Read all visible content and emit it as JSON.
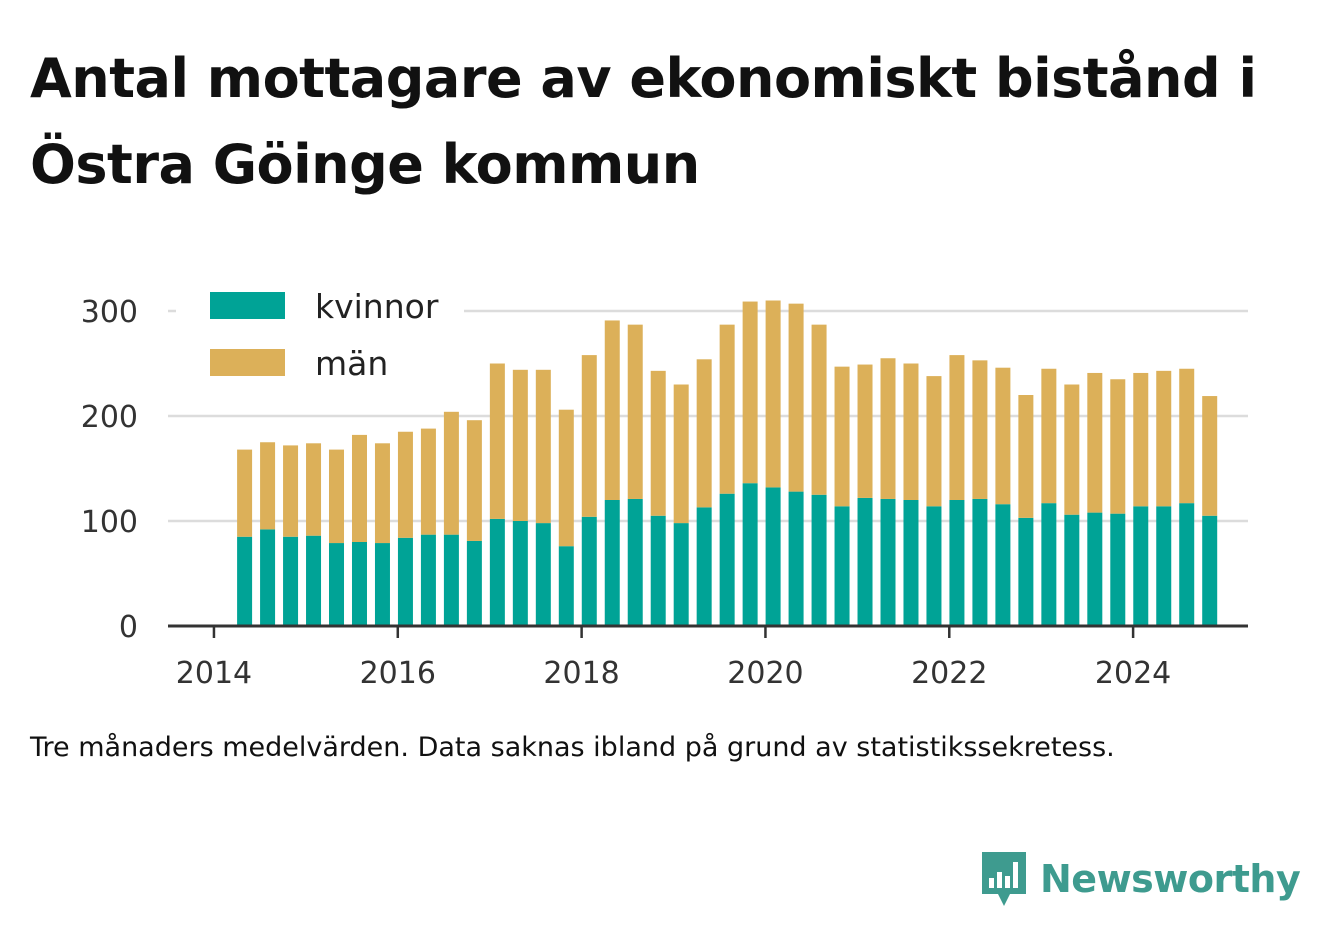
{
  "title": "Antal mottagare av ekonomiskt bistånd i Östra Göinge kommun",
  "note": "Tre månaders medelvärden. Data saknas ibland på grund av statistikssekretess.",
  "brand": {
    "name": "Newsworthy",
    "color": "#3e9b8f",
    "icon": "bar-chart-speech-bubble-icon"
  },
  "chart_data": {
    "type": "bar",
    "stacked": true,
    "x": [
      "2014-05",
      "2014-08",
      "2014-11",
      "2015-02",
      "2015-05",
      "2015-08",
      "2015-11",
      "2016-02",
      "2016-05",
      "2016-08",
      "2016-11",
      "2017-02",
      "2017-05",
      "2017-08",
      "2017-11",
      "2018-02",
      "2018-05",
      "2018-08",
      "2018-11",
      "2019-02",
      "2019-05",
      "2019-08",
      "2019-11",
      "2020-02",
      "2020-05",
      "2020-08",
      "2020-11",
      "2021-02",
      "2021-05",
      "2021-08",
      "2021-11",
      "2022-02",
      "2022-05",
      "2022-08",
      "2022-11",
      "2023-02",
      "2023-05",
      "2023-08",
      "2023-11",
      "2024-02",
      "2024-05",
      "2024-08",
      "2024-11"
    ],
    "series": [
      {
        "name": "kvinnor",
        "color": "#00a396",
        "values": [
          85,
          92,
          85,
          86,
          79,
          80,
          79,
          84,
          87,
          87,
          81,
          102,
          100,
          98,
          76,
          104,
          120,
          121,
          105,
          98,
          113,
          126,
          136,
          132,
          128,
          125,
          114,
          122,
          121,
          120,
          114,
          120,
          121,
          116,
          103,
          117,
          106,
          108,
          107,
          114,
          114,
          117,
          105
        ]
      },
      {
        "name": "män",
        "color": "#dcb059",
        "values": [
          83,
          83,
          87,
          88,
          89,
          102,
          95,
          101,
          101,
          117,
          115,
          148,
          144,
          146,
          130,
          154,
          171,
          166,
          138,
          132,
          141,
          161,
          173,
          178,
          179,
          162,
          133,
          127,
          134,
          130,
          124,
          138,
          132,
          130,
          117,
          128,
          124,
          133,
          128,
          127,
          129,
          128,
          114
        ]
      }
    ],
    "ylim": [
      0,
      320
    ],
    "yticks": [
      0,
      100,
      200,
      300
    ],
    "xticks": [
      "2014",
      "2016",
      "2018",
      "2020",
      "2022",
      "2024"
    ],
    "xlim": [
      "2013-07",
      "2025-04"
    ],
    "grid": "horizontal",
    "legend": "top-left"
  }
}
